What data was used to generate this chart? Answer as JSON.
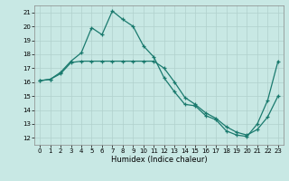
{
  "xlabel": "Humidex (Indice chaleur)",
  "xlim": [
    -0.5,
    23.5
  ],
  "ylim": [
    11.5,
    21.5
  ],
  "yticks": [
    12,
    13,
    14,
    15,
    16,
    17,
    18,
    19,
    20,
    21
  ],
  "xticks": [
    0,
    1,
    2,
    3,
    4,
    5,
    6,
    7,
    8,
    9,
    10,
    11,
    12,
    13,
    14,
    15,
    16,
    17,
    18,
    19,
    20,
    21,
    22,
    23
  ],
  "bg_color": "#c8e8e4",
  "line_color": "#1a7a6e",
  "line1_x": [
    0,
    1,
    2,
    3,
    4,
    5,
    6,
    7,
    8,
    9,
    10,
    11,
    12,
    13,
    14,
    15,
    16,
    17,
    18,
    19,
    20,
    21,
    22,
    23
  ],
  "line1_y": [
    16.1,
    16.2,
    16.7,
    17.5,
    18.1,
    19.9,
    19.4,
    21.1,
    20.5,
    20.0,
    18.6,
    17.8,
    16.3,
    15.3,
    14.4,
    14.3,
    13.6,
    13.3,
    12.5,
    12.2,
    12.1,
    13.0,
    14.7,
    17.5
  ],
  "line2_x": [
    0,
    1,
    2,
    3,
    4,
    5,
    6,
    7,
    8,
    9,
    10,
    11,
    12,
    13,
    14,
    15,
    16,
    17,
    18,
    19,
    20,
    21,
    22,
    23
  ],
  "line2_y": [
    16.1,
    16.2,
    16.6,
    17.4,
    17.5,
    17.5,
    17.5,
    17.5,
    17.5,
    17.5,
    17.5,
    17.5,
    17.0,
    16.0,
    14.9,
    14.4,
    13.8,
    13.4,
    12.8,
    12.4,
    12.2,
    12.6,
    13.5,
    15.0
  ]
}
